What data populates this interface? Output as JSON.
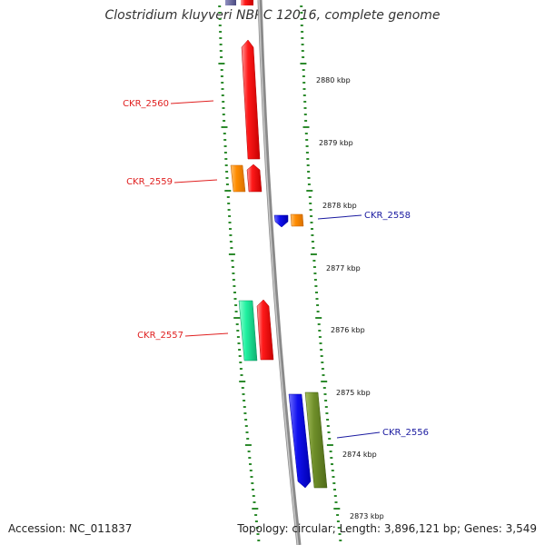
{
  "title": "Clostridium kluyveri NBRC 12016, complete genome",
  "footer": {
    "accession": "Accession: NC_011837",
    "summary": "Topology: circular; Length: 3,896,121 bp; Genes: 3,549"
  },
  "colors": {
    "backbone": "#8a8a8a",
    "tick_dots": "#2e8b2e",
    "minus_label": "#e02020",
    "plus_label": "#1a1aa0"
  },
  "kbp_ticks": [
    {
      "kbp": 2880,
      "label": "2880 kbp"
    },
    {
      "kbp": 2879,
      "label": "2879 kbp"
    },
    {
      "kbp": 2878,
      "label": "2878 kbp"
    },
    {
      "kbp": 2877,
      "label": "2877 kbp"
    },
    {
      "kbp": 2876,
      "label": "2876 kbp"
    },
    {
      "kbp": 2875,
      "label": "2875 kbp"
    },
    {
      "kbp": 2874,
      "label": "2874 kbp"
    },
    {
      "kbp": 2873,
      "label": "2873 kbp"
    }
  ],
  "genes": [
    {
      "name": "CKR_2560",
      "strand": "-",
      "label_color": "#e02020"
    },
    {
      "name": "CKR_2559",
      "strand": "-",
      "label_color": "#e02020"
    },
    {
      "name": "CKR_2558",
      "strand": "+",
      "label_color": "#1a1aa0"
    },
    {
      "name": "CKR_2557",
      "strand": "-",
      "label_color": "#e02020"
    },
    {
      "name": "CKR_2556",
      "strand": "+",
      "label_color": "#1a1aa0"
    }
  ]
}
